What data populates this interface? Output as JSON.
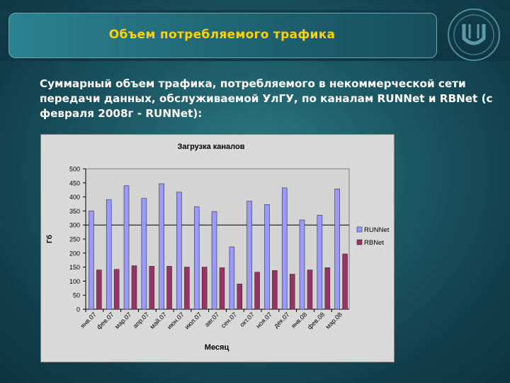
{
  "slide": {
    "title": "Объем потребляемого трафика",
    "subtitle": "Суммарный объем трафика, потребляемого в некоммерческой сети передачи данных, обслуживаемой УлГУ, по каналам RUNNet и RBNet (с февраля 2008г - RUNNet):"
  },
  "colors": {
    "background": "#1d5a66",
    "title_text": "#ffd200",
    "runnet": "#9999ff",
    "rbnet": "#993366",
    "plot_area": "#d4d4d4"
  },
  "chart_data": {
    "type": "bar",
    "title": "Загрузка каналов",
    "xlabel": "Месяц",
    "ylabel": "Гб",
    "ylim": [
      0,
      500
    ],
    "yticks": [
      0,
      50,
      100,
      150,
      200,
      250,
      300,
      350,
      400,
      450,
      500
    ],
    "reference_line": 300,
    "legend_position": "right",
    "categories": [
      "янв.07",
      "фев.07",
      "мар.07",
      "апр.07",
      "май.07",
      "июн.07",
      "июл.07",
      "авг.07",
      "сен.07",
      "окт.07",
      "ноя.07",
      "дек.07",
      "янв.08",
      "фев.08",
      "мар.08"
    ],
    "series": [
      {
        "name": "RUNNet",
        "color": "#9999ff",
        "values": [
          350,
          390,
          440,
          395,
          447,
          417,
          365,
          348,
          222,
          385,
          373,
          432,
          318,
          335,
          428
        ]
      },
      {
        "name": "RBNet",
        "color": "#993366",
        "values": [
          140,
          142,
          155,
          153,
          153,
          150,
          150,
          148,
          90,
          132,
          138,
          125,
          140,
          148,
          197
        ]
      }
    ]
  }
}
